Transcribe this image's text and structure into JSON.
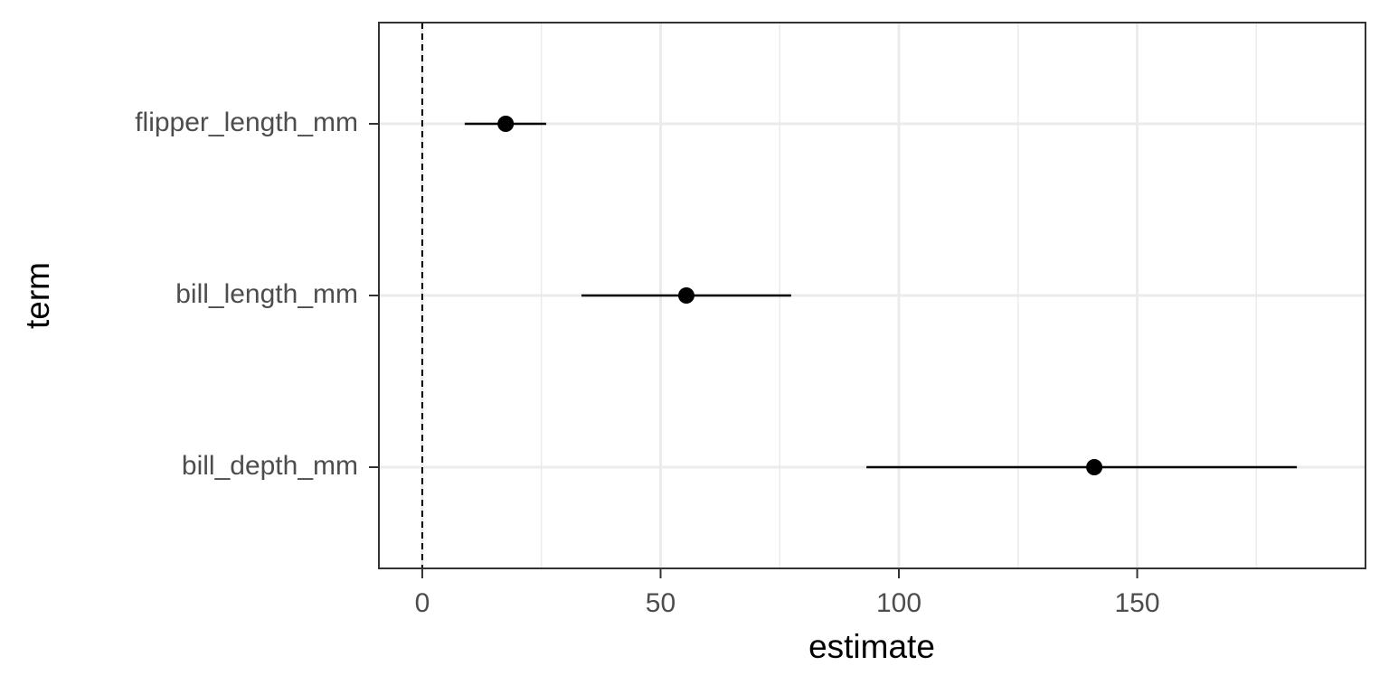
{
  "chart_data": {
    "type": "pointrange",
    "x_label": "estimate",
    "y_label": "term",
    "categories": [
      "bill_depth_mm",
      "bill_length_mm",
      "flipper_length_mm"
    ],
    "values": [
      141.0,
      55.4,
      17.5
    ],
    "low": [
      93.2,
      33.4,
      8.9
    ],
    "high": [
      183.5,
      77.4,
      26.0
    ],
    "color": "#000000",
    "xlim": [
      -9.1,
      197.9
    ],
    "xticks": [
      0,
      50,
      100,
      150
    ],
    "minor_xticks": [
      25,
      75,
      125,
      175
    ],
    "reference_line": 0,
    "grid": true
  }
}
